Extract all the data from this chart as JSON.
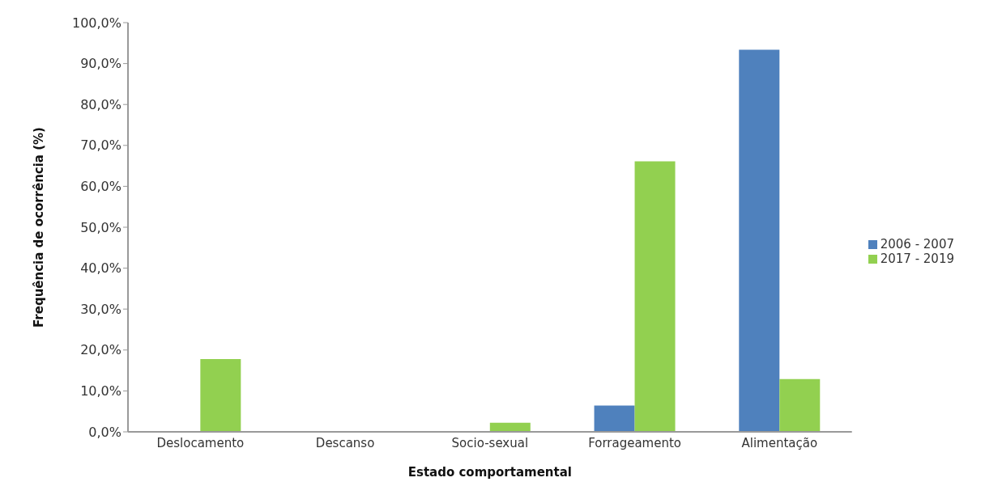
{
  "chart_data": {
    "type": "bar",
    "xlabel": "Estado comportamental",
    "ylabel": "Frequência de ocorrência (%)",
    "categories": [
      "Deslocamento",
      "Descanso",
      "Socio-sexual",
      "Forrageamento",
      "Alimentação"
    ],
    "series": [
      {
        "name": "2006 - 2007",
        "color": "#4f81bd",
        "values": [
          0,
          0,
          0,
          6.4,
          93.4
        ]
      },
      {
        "name": "2017 - 2019",
        "color": "#92d050",
        "values": [
          17.8,
          0,
          2.2,
          66.1,
          12.9
        ]
      }
    ],
    "ylim": [
      0,
      100
    ],
    "yticks": [
      {
        "value": 0,
        "label": "0,0%"
      },
      {
        "value": 10,
        "label": "10,0%"
      },
      {
        "value": 20,
        "label": "20,0%"
      },
      {
        "value": 30,
        "label": "30,0%"
      },
      {
        "value": 40,
        "label": "40,0%"
      },
      {
        "value": 50,
        "label": "50,0%"
      },
      {
        "value": 60,
        "label": "60,0%"
      },
      {
        "value": 70,
        "label": "70,0%"
      },
      {
        "value": 80,
        "label": "80,0%"
      },
      {
        "value": 90,
        "label": "90,0%"
      },
      {
        "value": 100,
        "label": "100,0%"
      }
    ],
    "grid": false,
    "legend": "right"
  }
}
